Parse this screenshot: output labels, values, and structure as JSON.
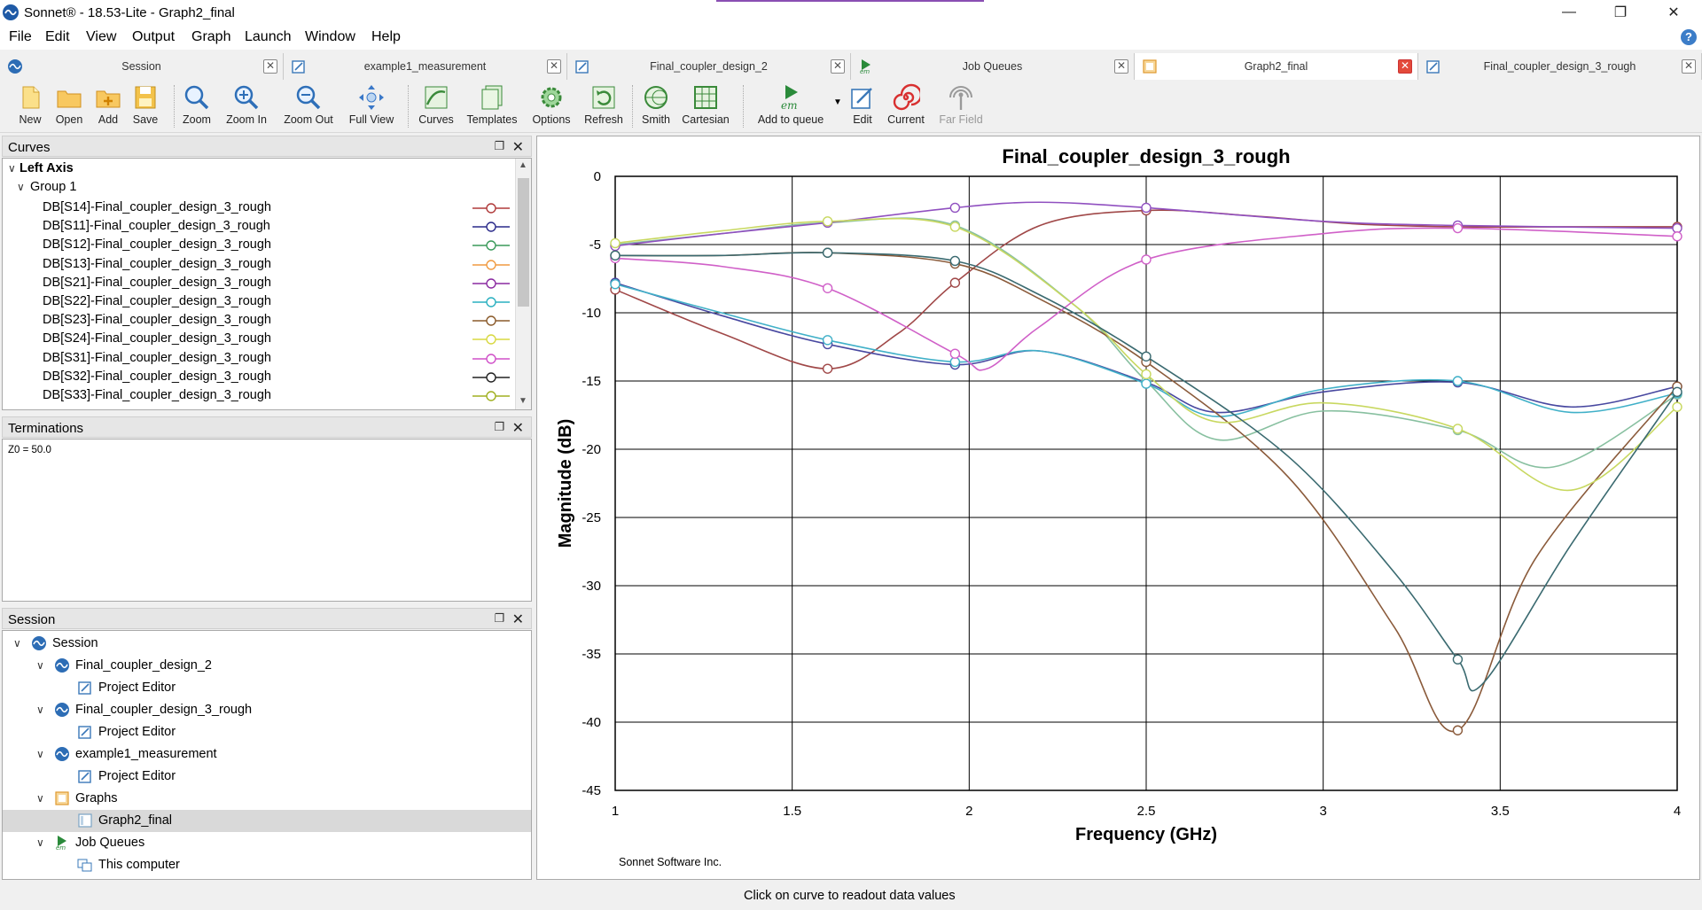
{
  "window": {
    "title": "Sonnet® - 18.53-Lite - Graph2_final"
  },
  "menu": [
    "File",
    "Edit",
    "View",
    "Output",
    "Graph",
    "Launch",
    "Window",
    "Help"
  ],
  "tabs": [
    {
      "label": "Session",
      "icon": "session-icon"
    },
    {
      "label": "example1_measurement",
      "icon": "project-editor-icon"
    },
    {
      "label": "Final_coupler_design_2",
      "icon": "project-editor-icon"
    },
    {
      "label": "Job Queues",
      "icon": "em-icon"
    },
    {
      "label": "Graph2_final",
      "icon": "graph-icon",
      "active": true
    },
    {
      "label": "Final_coupler_design_3_rough",
      "icon": "project-editor-icon"
    }
  ],
  "toolbar": [
    {
      "label": "New",
      "icon": "new-icon"
    },
    {
      "label": "Open",
      "icon": "open-icon"
    },
    {
      "label": "Add",
      "icon": "add-icon"
    },
    {
      "label": "Save",
      "icon": "save-icon"
    },
    {
      "label": "Zoom",
      "icon": "zoom-icon"
    },
    {
      "label": "Zoom In",
      "icon": "zoom-in-icon"
    },
    {
      "label": "Zoom Out",
      "icon": "zoom-out-icon"
    },
    {
      "label": "Full View",
      "icon": "full-view-icon"
    },
    {
      "label": "Curves",
      "icon": "curves-icon"
    },
    {
      "label": "Templates",
      "icon": "templates-icon"
    },
    {
      "label": "Options",
      "icon": "options-icon"
    },
    {
      "label": "Refresh",
      "icon": "refresh-icon"
    },
    {
      "label": "Smith",
      "icon": "smith-icon"
    },
    {
      "label": "Cartesian",
      "icon": "cartesian-icon"
    },
    {
      "label": "Add to queue",
      "icon": "add-to-queue-icon"
    },
    {
      "label": "Edit",
      "icon": "edit-icon"
    },
    {
      "label": "Current",
      "icon": "current-icon"
    },
    {
      "label": "Far Field",
      "icon": "far-field-icon",
      "disabled": true
    }
  ],
  "curves_panel": {
    "title": "Curves",
    "axis_label": "Left Axis",
    "group_label": "Group 1",
    "items": [
      {
        "label": "DB[S14]-Final_coupler_design_3_rough",
        "color": "#b03a3a"
      },
      {
        "label": "DB[S11]-Final_coupler_design_3_rough",
        "color": "#2a2a8a"
      },
      {
        "label": "DB[S12]-Final_coupler_design_3_rough",
        "color": "#3a9a5a"
      },
      {
        "label": "DB[S13]-Final_coupler_design_3_rough",
        "color": "#f09a40"
      },
      {
        "label": "DB[S21]-Final_coupler_design_3_rough",
        "color": "#8a2aa0"
      },
      {
        "label": "DB[S22]-Final_coupler_design_3_rough",
        "color": "#2ab0c0"
      },
      {
        "label": "DB[S23]-Final_coupler_design_3_rough",
        "color": "#8a5a2a"
      },
      {
        "label": "DB[S24]-Final_coupler_design_3_rough",
        "color": "#d8d840"
      },
      {
        "label": "DB[S31]-Final_coupler_design_3_rough",
        "color": "#d050c8"
      },
      {
        "label": "DB[S32]-Final_coupler_design_3_rough",
        "color": "#222222"
      },
      {
        "label": "DB[S33]-Final_coupler_design_3_rough",
        "color": "#a0b020"
      }
    ]
  },
  "terminations_panel": {
    "title": "Terminations",
    "text": "Z0 = 50.0"
  },
  "session_panel": {
    "title": "Session",
    "items": [
      {
        "label": "Session",
        "level": 0,
        "icon": "session-icon"
      },
      {
        "label": "Final_coupler_design_2",
        "level": 1,
        "icon": "session-icon"
      },
      {
        "label": "Project Editor",
        "level": 2,
        "icon": "project-editor-icon"
      },
      {
        "label": "Final_coupler_design_3_rough",
        "level": 1,
        "icon": "session-icon"
      },
      {
        "label": "Project Editor",
        "level": 2,
        "icon": "project-editor-icon"
      },
      {
        "label": "example1_measurement",
        "level": 1,
        "icon": "session-icon"
      },
      {
        "label": "Project Editor",
        "level": 2,
        "icon": "project-editor-icon"
      },
      {
        "label": "Graphs",
        "level": 1,
        "icon": "graph-folder-icon"
      },
      {
        "label": "Graph2_final",
        "level": 2,
        "icon": "graph-icon",
        "selected": true
      },
      {
        "label": "Job Queues",
        "level": 1,
        "icon": "em-icon"
      },
      {
        "label": "This computer",
        "level": 2,
        "icon": "computer-icon"
      }
    ]
  },
  "graph": {
    "footer": "Sonnet Software Inc."
  },
  "chart_data": {
    "type": "line",
    "title": "Final_coupler_design_3_rough",
    "xlabel": "Frequency (GHz)",
    "ylabel": "Magnitude (dB)",
    "xlim": [
      1,
      4
    ],
    "ylim": [
      -45,
      0
    ],
    "xticks": [
      "1",
      "1.5",
      "2",
      "2.5",
      "3",
      "3.5",
      "4"
    ],
    "yticks": [
      "0",
      "-5",
      "-10",
      "-15",
      "-20",
      "-25",
      "-30",
      "-35",
      "-40",
      "-45"
    ],
    "grid": true,
    "series": [
      {
        "name": "DB[S14]-Final_coupler_design_3_rough",
        "color": "#a04848",
        "x": [
          1,
          1.3,
          1.6,
          1.8,
          1.96,
          2.2,
          2.5,
          2.8,
          3.1,
          3.38,
          3.7,
          4
        ],
        "y": [
          -8.3,
          -11.5,
          -14.1,
          -11.5,
          -7.8,
          -3.6,
          -2.5,
          -2.9,
          -3.5,
          -3.7,
          -3.7,
          -3.7
        ]
      },
      {
        "name": "DB[S11]-Final_coupler_design_3_rough",
        "color": "#4848a0",
        "x": [
          1,
          1.3,
          1.6,
          1.96,
          2.2,
          2.5,
          2.7,
          3,
          3.38,
          3.7,
          4
        ],
        "y": [
          -7.8,
          -10.2,
          -12.3,
          -13.8,
          -12.8,
          -15.1,
          -17.3,
          -15.8,
          -15.1,
          -16.9,
          -15.4
        ]
      },
      {
        "name": "DB[S12]-Final_coupler_design_3_rough",
        "color": "#88c0a0",
        "x": [
          1,
          1.3,
          1.6,
          1.96,
          2.3,
          2.5,
          2.7,
          3,
          3.38,
          3.65,
          4
        ],
        "y": [
          -5,
          -4.2,
          -3.4,
          -3.6,
          -9.5,
          -15,
          -19.3,
          -17.2,
          -18.6,
          -21.3,
          -16
        ]
      },
      {
        "name": "DB[S21]-Final_coupler_design_3_rough",
        "color": "#9050c0",
        "x": [
          1,
          1.3,
          1.6,
          1.96,
          2.2,
          2.5,
          3,
          3.38,
          4
        ],
        "y": [
          -5.1,
          -4.2,
          -3.4,
          -2.3,
          -1.9,
          -2.3,
          -3.3,
          -3.6,
          -3.8
        ]
      },
      {
        "name": "DB[S22]-Final_coupler_design_3_rough",
        "color": "#40b0c8",
        "x": [
          1,
          1.3,
          1.6,
          1.96,
          2.2,
          2.5,
          2.7,
          3,
          3.38,
          3.7,
          4
        ],
        "y": [
          -7.9,
          -10,
          -12,
          -13.6,
          -12.8,
          -15.2,
          -17.6,
          -15.6,
          -15,
          -17.3,
          -15.9
        ]
      },
      {
        "name": "DB[S23]-Final_coupler_design_3_rough",
        "color": "#8a5a3a",
        "x": [
          1,
          1.3,
          1.6,
          1.96,
          2.2,
          2.5,
          2.9,
          3.2,
          3.38,
          3.6,
          4
        ],
        "y": [
          -5.8,
          -5.8,
          -5.6,
          -6.4,
          -9,
          -13.6,
          -22,
          -33,
          -40.6,
          -28,
          -15.4
        ]
      },
      {
        "name": "DB[S24]-Final_coupler_design_3_rough",
        "color": "#c8d860",
        "x": [
          1,
          1.3,
          1.6,
          1.96,
          2.3,
          2.5,
          2.7,
          3,
          3.38,
          3.7,
          4
        ],
        "y": [
          -4.9,
          -4,
          -3.3,
          -3.7,
          -9.5,
          -14.5,
          -18,
          -16.6,
          -18.5,
          -23,
          -16.9
        ]
      },
      {
        "name": "DB[S31]-Final_coupler_design_3_rough",
        "color": "#d060c8",
        "x": [
          1,
          1.3,
          1.6,
          1.96,
          2.05,
          2.2,
          2.5,
          3,
          3.38,
          4
        ],
        "y": [
          -6,
          -6.6,
          -8.2,
          -13,
          -14.1,
          -11,
          -6.1,
          -4.2,
          -3.8,
          -4.4
        ]
      },
      {
        "name": "DB[S32]-Final_coupler_design_3_rough",
        "color": "#3a6a70",
        "x": [
          1,
          1.3,
          1.6,
          1.96,
          2.2,
          2.5,
          2.9,
          3.2,
          3.38,
          3.45,
          3.7,
          4
        ],
        "y": [
          -5.8,
          -5.8,
          -5.6,
          -6.2,
          -8.7,
          -13.2,
          -20.5,
          -29,
          -35.4,
          -37.2,
          -27,
          -15.8
        ]
      }
    ]
  },
  "status": {
    "text": "Click on curve to readout data values"
  }
}
